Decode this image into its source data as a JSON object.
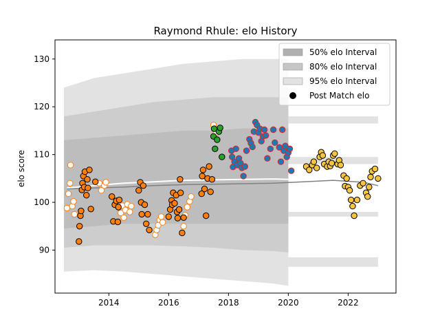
{
  "chart_data": {
    "type": "scatter",
    "title": "Raymond Rhule: elo History",
    "xlabel": "",
    "ylabel": "elo score",
    "xlim": [
      2012.2,
      2023.6
    ],
    "ylim": [
      81,
      134
    ],
    "x_ticks": [
      2014,
      2016,
      2018,
      2020,
      2022
    ],
    "y_ticks": [
      90,
      100,
      110,
      120,
      130
    ],
    "grid": false,
    "legend_placement": "top-right",
    "legend": [
      {
        "label": "50% elo Interval",
        "kind": "band",
        "color": "#b0b0b0"
      },
      {
        "label": "80% elo Interval",
        "kind": "band",
        "color": "#c6c6c6"
      },
      {
        "label": "95% elo Interval",
        "kind": "band",
        "color": "#e2e2e2"
      },
      {
        "label": "Post Match elo",
        "kind": "marker",
        "color": "#000000"
      }
    ],
    "bands": {
      "x": [
        2012.5,
        2013.5,
        2014.5,
        2015.5,
        2016.5,
        2017.5,
        2018.5,
        2019.5,
        2020.0
      ],
      "band95": {
        "low": [
          85.5,
          85.8,
          85.5,
          85.0,
          84.5,
          84.0,
          83.5,
          83.0,
          82.5
        ],
        "high": [
          124,
          126,
          127,
          128,
          129,
          129.5,
          130,
          130,
          130
        ]
      },
      "band80": {
        "low": [
          90.5,
          91.0,
          91.0,
          91.0,
          90.8,
          90.5,
          90.0,
          89.8,
          89.5
        ],
        "high": [
          118,
          119,
          120,
          121,
          121.5,
          122,
          122,
          122,
          122
        ]
      },
      "band50": {
        "low": [
          94.5,
          95.0,
          95.5,
          95.5,
          95.5,
          95.5,
          95.5,
          95.5,
          95.5
        ],
        "high": [
          113,
          113.5,
          114,
          114.5,
          115,
          115,
          115.5,
          115.5,
          115.5
        ]
      },
      "after_x": [
        2020.0,
        2021.0,
        2022.0,
        2023.0
      ],
      "after_bands": [
        {
          "low": [
            86.5,
            86.5,
            86.5,
            86.5
          ],
          "high": [
            88.5,
            88.5,
            88.5,
            88.5
          ]
        },
        {
          "low": [
            97.0,
            97.0,
            97.0,
            97.0
          ],
          "high": [
            98.0,
            98.0,
            98.0,
            98.0
          ]
        },
        {
          "low": [
            108.0,
            108.0,
            108.0,
            108.0
          ],
          "high": [
            109.5,
            109.5,
            109.5,
            109.5
          ]
        },
        {
          "low": [
            116.5,
            116.5,
            116.5,
            116.5
          ],
          "high": [
            118.0,
            118.0,
            118.0,
            118.0
          ]
        }
      ]
    },
    "lines": [
      {
        "color": "#ffffff",
        "width": 2,
        "x": [
          2012.6,
          2013.5,
          2014.5,
          2015.5,
          2016.5,
          2017.5,
          2018.5,
          2019.5,
          2020.0
        ],
        "y": [
          103.0,
          103.5,
          104.0,
          104.3,
          104.6,
          104.7,
          104.8,
          104.9,
          104.8
        ]
      },
      {
        "color": "#808080",
        "width": 1.5,
        "x": [
          2012.6,
          2013.5,
          2014.5,
          2015.5,
          2016.5,
          2017.5,
          2018.5,
          2019.5,
          2020.5,
          2021.5,
          2022.5,
          2023.0
        ],
        "y": [
          102.8,
          103.0,
          103.2,
          103.5,
          103.7,
          103.8,
          103.9,
          104.0,
          104.3,
          104.6,
          104.2,
          103.5
        ]
      }
    ],
    "series": [
      {
        "fill": "#ffffff",
        "edge": "#ff7f0e",
        "points": [
          [
            2012.6,
            98.8
          ],
          [
            2012.65,
            101.8
          ],
          [
            2012.7,
            104.0
          ],
          [
            2012.72,
            107.8
          ],
          [
            2012.78,
            99.2
          ],
          [
            2012.82,
            100.2
          ],
          [
            2012.85,
            97.5
          ],
          [
            2013.68,
            104.0
          ],
          [
            2013.75,
            102.5
          ],
          [
            2013.85,
            103.5
          ],
          [
            2013.9,
            104.2
          ],
          [
            2014.4,
            97.8
          ],
          [
            2014.45,
            99.3
          ],
          [
            2014.5,
            96.8
          ],
          [
            2014.55,
            98.4
          ],
          [
            2014.62,
            99.6
          ],
          [
            2014.7,
            98.0
          ],
          [
            2014.75,
            99.2
          ],
          [
            2015.55,
            93.2
          ],
          [
            2015.6,
            94.2
          ],
          [
            2015.65,
            95.2
          ],
          [
            2015.7,
            96.3
          ],
          [
            2015.75,
            97.0
          ],
          [
            2015.8,
            95.8
          ],
          [
            2016.5,
            95.0
          ],
          [
            2016.55,
            97.3
          ],
          [
            2016.62,
            99.0
          ],
          [
            2016.7,
            100.2
          ],
          [
            2016.75,
            101.2
          ],
          [
            2017.5,
            116.2
          ],
          [
            2017.58,
            114.5
          ]
        ]
      },
      {
        "fill": "#ff7f0e",
        "edge": "#000000",
        "points": [
          [
            2013.0,
            91.8
          ],
          [
            2013.02,
            95.0
          ],
          [
            2013.05,
            97.2
          ],
          [
            2013.07,
            98.2
          ],
          [
            2013.1,
            102.6
          ],
          [
            2013.12,
            104.0
          ],
          [
            2013.15,
            105.5
          ],
          [
            2013.18,
            103.2
          ],
          [
            2013.2,
            106.4
          ],
          [
            2013.25,
            101.5
          ],
          [
            2013.28,
            104.8
          ],
          [
            2013.3,
            103.0
          ],
          [
            2013.35,
            106.8
          ],
          [
            2013.4,
            98.6
          ],
          [
            2013.55,
            104.3
          ],
          [
            2014.1,
            101.2
          ],
          [
            2014.15,
            96.0
          ],
          [
            2014.2,
            99.5
          ],
          [
            2014.25,
            100.3
          ],
          [
            2014.3,
            95.9
          ],
          [
            2014.32,
            99.0
          ],
          [
            2014.35,
            100.5
          ],
          [
            2015.0,
            102.5
          ],
          [
            2015.05,
            104.2
          ],
          [
            2015.08,
            100.0
          ],
          [
            2015.1,
            97.5
          ],
          [
            2015.15,
            103.5
          ],
          [
            2015.2,
            99.5
          ],
          [
            2015.25,
            95.5
          ],
          [
            2015.3,
            97.5
          ],
          [
            2015.35,
            94.2
          ],
          [
            2016.0,
            97.0
          ],
          [
            2016.05,
            98.5
          ],
          [
            2016.1,
            100.4
          ],
          [
            2016.12,
            99.5
          ],
          [
            2016.15,
            102.0
          ],
          [
            2016.2,
            99.8
          ],
          [
            2016.25,
            101.5
          ],
          [
            2016.28,
            98.0
          ],
          [
            2016.3,
            96.7
          ],
          [
            2016.35,
            98.5
          ],
          [
            2016.38,
            104.8
          ],
          [
            2016.4,
            102.0
          ],
          [
            2016.45,
            93.6
          ],
          [
            2016.5,
            96.8
          ],
          [
            2017.1,
            101.8
          ],
          [
            2017.12,
            105.5
          ],
          [
            2017.15,
            106.8
          ],
          [
            2017.2,
            102.8
          ],
          [
            2017.25,
            97.2
          ],
          [
            2017.3,
            105.0
          ],
          [
            2017.35,
            107.5
          ],
          [
            2017.4,
            102.2
          ],
          [
            2017.45,
            104.8
          ]
        ]
      },
      {
        "fill": "#2ca02c",
        "edge": "#000000",
        "points": [
          [
            2017.5,
            113.8
          ],
          [
            2017.52,
            115.4
          ],
          [
            2017.55,
            111.2
          ],
          [
            2017.62,
            113.1
          ],
          [
            2017.68,
            114.8
          ],
          [
            2017.72,
            115.6
          ],
          [
            2017.78,
            109.5
          ]
        ]
      },
      {
        "fill": "#1f77b4",
        "edge": "#d62728",
        "points": [
          [
            2018.1,
            110.8
          ],
          [
            2018.12,
            109.5
          ],
          [
            2018.15,
            107.4
          ],
          [
            2018.2,
            108.5
          ],
          [
            2018.25,
            111.2
          ],
          [
            2018.3,
            107.8
          ],
          [
            2018.35,
            109.2
          ],
          [
            2018.4,
            108.2
          ],
          [
            2018.45,
            107.2
          ],
          [
            2018.5,
            105.5
          ],
          [
            2018.55,
            107.5
          ],
          [
            2018.6,
            110.8
          ],
          [
            2018.7,
            113.2
          ],
          [
            2018.75,
            112.4
          ],
          [
            2018.8,
            111.6
          ],
          [
            2018.85,
            114.8
          ],
          [
            2018.9,
            116.8
          ],
          [
            2018.95,
            116.2
          ],
          [
            2019.0,
            114.6
          ],
          [
            2019.05,
            115.4
          ],
          [
            2019.1,
            112.8
          ],
          [
            2019.15,
            113.8
          ],
          [
            2019.2,
            115.2
          ],
          [
            2019.25,
            114.0
          ],
          [
            2019.3,
            109.2
          ],
          [
            2019.4,
            111.2
          ],
          [
            2019.5,
            115.2
          ],
          [
            2019.55,
            112.5
          ],
          [
            2019.7,
            111.5
          ],
          [
            2019.75,
            108.5
          ],
          [
            2019.8,
            115.2
          ],
          [
            2019.85,
            110.8
          ],
          [
            2019.9,
            111.8
          ],
          [
            2019.95,
            109.5
          ],
          [
            2020.0,
            110.4
          ],
          [
            2020.05,
            111.2
          ],
          [
            2020.1,
            106.6
          ]
        ]
      },
      {
        "fill": "#f5c542",
        "edge": "#000000",
        "points": [
          [
            2020.6,
            107.5
          ],
          [
            2020.7,
            106.8
          ],
          [
            2020.8,
            107.8
          ],
          [
            2020.85,
            108.5
          ],
          [
            2020.95,
            107.2
          ],
          [
            2021.05,
            109.5
          ],
          [
            2021.1,
            110.5
          ],
          [
            2021.15,
            109.8
          ],
          [
            2021.2,
            108.0
          ],
          [
            2021.3,
            107.5
          ],
          [
            2021.35,
            108.5
          ],
          [
            2021.4,
            107.6
          ],
          [
            2021.45,
            108.2
          ],
          [
            2021.5,
            109.8
          ],
          [
            2021.55,
            110.2
          ],
          [
            2021.65,
            108.0
          ],
          [
            2021.7,
            108.8
          ],
          [
            2021.75,
            107.8
          ],
          [
            2021.85,
            105.6
          ],
          [
            2021.9,
            103.4
          ],
          [
            2021.95,
            105.0
          ],
          [
            2022.0,
            103.2
          ],
          [
            2022.05,
            102.5
          ],
          [
            2022.1,
            100.5
          ],
          [
            2022.15,
            99.2
          ],
          [
            2022.2,
            97.2
          ],
          [
            2022.3,
            100.5
          ],
          [
            2022.4,
            103.5
          ],
          [
            2022.5,
            104.0
          ],
          [
            2022.6,
            102.0
          ],
          [
            2022.65,
            101.2
          ],
          [
            2022.7,
            103.2
          ],
          [
            2022.75,
            105.3
          ],
          [
            2022.8,
            106.5
          ],
          [
            2022.9,
            107.0
          ],
          [
            2023.0,
            105.0
          ]
        ]
      }
    ]
  }
}
